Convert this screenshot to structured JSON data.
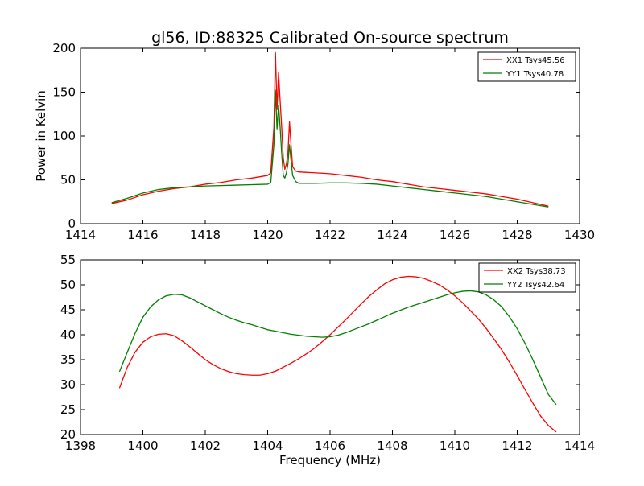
{
  "figure": {
    "title": "gl56, ID:88325 Calibrated On-source spectrum"
  },
  "chart_data": [
    {
      "type": "line",
      "ylabel": "Power in Kelvin",
      "xlabel": "",
      "xlim": [
        1414,
        1430
      ],
      "ylim": [
        0,
        200
      ],
      "xticks": [
        "1414",
        "1416",
        "1418",
        "1420",
        "1422",
        "1424",
        "1426",
        "1428",
        "1430"
      ],
      "yticks": [
        "0",
        "50",
        "100",
        "150",
        "200"
      ],
      "legend_position": "top-right",
      "series": [
        {
          "name": "XX1 Tsys45.56",
          "color": "#ff0000",
          "x": [
            1415.0,
            1415.5,
            1416.0,
            1416.5,
            1417.0,
            1417.5,
            1418.0,
            1418.5,
            1419.0,
            1419.5,
            1420.0,
            1420.1,
            1420.2,
            1420.25,
            1420.3,
            1420.35,
            1420.4,
            1420.45,
            1420.5,
            1420.55,
            1420.6,
            1420.65,
            1420.7,
            1420.75,
            1420.8,
            1420.9,
            1421.0,
            1421.5,
            1422.0,
            1422.5,
            1423.0,
            1423.5,
            1424.0,
            1424.5,
            1425.0,
            1425.5,
            1426.0,
            1426.5,
            1427.0,
            1427.5,
            1428.0,
            1428.5,
            1429.0
          ],
          "values": [
            23,
            27,
            33,
            37,
            40,
            42,
            45,
            47,
            50,
            52,
            55,
            58,
            110,
            195,
            130,
            172,
            140,
            110,
            75,
            62,
            68,
            80,
            116,
            90,
            65,
            60,
            59,
            58,
            57,
            55,
            53,
            50,
            48,
            45,
            42,
            40,
            38,
            36,
            34,
            31,
            28,
            24,
            20
          ]
        },
        {
          "name": "YY1 Tsys40.78",
          "color": "#008000",
          "x": [
            1415.0,
            1415.5,
            1416.0,
            1416.5,
            1417.0,
            1417.5,
            1418.0,
            1418.5,
            1419.0,
            1419.5,
            1420.0,
            1420.1,
            1420.2,
            1420.25,
            1420.3,
            1420.35,
            1420.4,
            1420.45,
            1420.5,
            1420.55,
            1420.6,
            1420.65,
            1420.7,
            1420.75,
            1420.8,
            1420.9,
            1421.0,
            1421.5,
            1422.0,
            1422.5,
            1423.0,
            1423.5,
            1424.0,
            1424.5,
            1425.0,
            1425.5,
            1426.0,
            1426.5,
            1427.0,
            1427.5,
            1428.0,
            1428.5,
            1429.0
          ],
          "values": [
            24,
            29,
            35,
            39,
            41,
            42,
            43,
            43.5,
            44,
            44.5,
            45,
            47,
            90,
            152,
            108,
            135,
            110,
            80,
            55,
            52,
            58,
            68,
            90,
            72,
            55,
            48,
            46,
            46,
            46.5,
            46.5,
            46,
            45,
            43,
            41,
            39,
            37,
            35,
            33,
            31,
            28,
            25,
            22,
            19
          ]
        }
      ]
    },
    {
      "type": "line",
      "ylabel": "",
      "xlabel": "Frequency (MHz)",
      "xlim": [
        1398,
        1414
      ],
      "ylim": [
        20,
        55
      ],
      "xticks": [
        "1398",
        "1400",
        "1402",
        "1404",
        "1406",
        "1408",
        "1410",
        "1412",
        "1414"
      ],
      "yticks": [
        "20",
        "25",
        "30",
        "35",
        "40",
        "45",
        "50",
        "55"
      ],
      "legend_position": "top-right",
      "series": [
        {
          "name": "XX2 Tsys38.73",
          "color": "#ff0000",
          "x": [
            1399.25,
            1399.5,
            1399.75,
            1400.0,
            1400.25,
            1400.5,
            1400.75,
            1401.0,
            1401.25,
            1401.5,
            1401.75,
            1402.0,
            1402.25,
            1402.5,
            1402.75,
            1403.0,
            1403.25,
            1403.5,
            1403.75,
            1404.0,
            1404.25,
            1404.5,
            1404.75,
            1405.0,
            1405.25,
            1405.5,
            1405.75,
            1406.0,
            1406.25,
            1406.5,
            1406.75,
            1407.0,
            1407.25,
            1407.5,
            1407.75,
            1408.0,
            1408.25,
            1408.5,
            1408.75,
            1409.0,
            1409.25,
            1409.5,
            1409.75,
            1410.0,
            1410.25,
            1410.5,
            1410.75,
            1411.0,
            1411.25,
            1411.5,
            1411.75,
            1412.0,
            1412.25,
            1412.5,
            1412.75,
            1413.0,
            1413.25
          ],
          "values": [
            29.3,
            33.5,
            36.5,
            38.5,
            39.6,
            40.1,
            40.2,
            39.8,
            38.8,
            37.6,
            36.3,
            35.0,
            34.0,
            33.2,
            32.6,
            32.2,
            32.0,
            31.9,
            31.9,
            32.2,
            32.7,
            33.5,
            34.3,
            35.2,
            36.2,
            37.3,
            38.6,
            40.0,
            41.5,
            43.0,
            44.6,
            46.2,
            47.7,
            49.0,
            50.2,
            51.0,
            51.5,
            51.7,
            51.6,
            51.3,
            50.7,
            50.0,
            49.0,
            47.8,
            46.4,
            44.8,
            43.2,
            41.3,
            39.2,
            37.0,
            34.5,
            31.8,
            29.0,
            26.3,
            23.7,
            21.8,
            20.5
          ]
        },
        {
          "name": "YY2 Tsys42.64",
          "color": "#008000",
          "x": [
            1399.25,
            1399.5,
            1399.75,
            1400.0,
            1400.25,
            1400.5,
            1400.75,
            1401.0,
            1401.25,
            1401.5,
            1401.75,
            1402.0,
            1402.25,
            1402.5,
            1402.75,
            1403.0,
            1403.25,
            1403.5,
            1403.75,
            1404.0,
            1404.25,
            1404.5,
            1404.75,
            1405.0,
            1405.25,
            1405.5,
            1405.75,
            1406.0,
            1406.25,
            1406.5,
            1406.75,
            1407.0,
            1407.25,
            1407.5,
            1407.75,
            1408.0,
            1408.25,
            1408.5,
            1408.75,
            1409.0,
            1409.25,
            1409.5,
            1409.75,
            1410.0,
            1410.25,
            1410.5,
            1410.75,
            1411.0,
            1411.25,
            1411.5,
            1411.75,
            1412.0,
            1412.25,
            1412.5,
            1412.75,
            1413.0,
            1413.25
          ],
          "values": [
            32.6,
            36.5,
            40.3,
            43.5,
            45.6,
            47.0,
            47.8,
            48.1,
            48.0,
            47.4,
            46.6,
            45.8,
            45.0,
            44.2,
            43.5,
            42.9,
            42.4,
            42.0,
            41.5,
            41.0,
            40.7,
            40.4,
            40.1,
            39.9,
            39.7,
            39.6,
            39.5,
            39.6,
            39.9,
            40.4,
            41.0,
            41.6,
            42.2,
            42.9,
            43.6,
            44.3,
            44.9,
            45.5,
            46.0,
            46.5,
            47.0,
            47.5,
            48.0,
            48.4,
            48.7,
            48.8,
            48.6,
            48.0,
            47.0,
            45.6,
            43.6,
            41.2,
            38.3,
            35.0,
            31.5,
            28.0,
            26.0
          ]
        }
      ]
    }
  ]
}
